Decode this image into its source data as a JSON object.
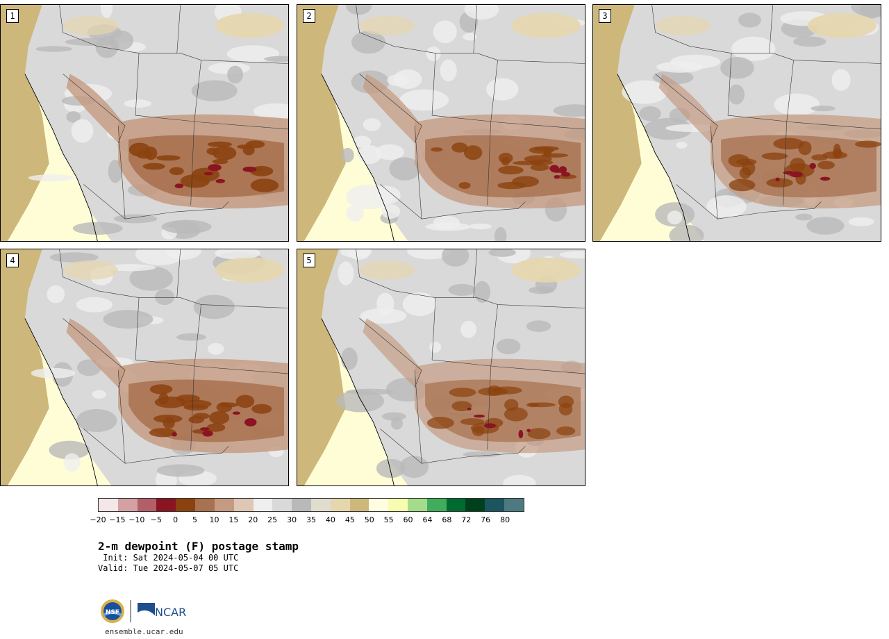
{
  "panels": [
    {
      "label": "1",
      "intensity": 1.0
    },
    {
      "label": "2",
      "intensity": 0.9
    },
    {
      "label": "3",
      "intensity": 0.85
    },
    {
      "label": "4",
      "intensity": 0.95
    },
    {
      "label": "5",
      "intensity": 0.8
    }
  ],
  "legend": {
    "ticks": [
      "−20",
      "−15",
      "−10",
      "−5",
      "0",
      "5",
      "10",
      "15",
      "20",
      "25",
      "30",
      "35",
      "40",
      "45",
      "50",
      "55",
      "60",
      "64",
      "68",
      "72",
      "76",
      "80"
    ],
    "colors": [
      "#f5e6e8",
      "#d4a0a3",
      "#b25f68",
      "#8a1422",
      "#8b420f",
      "#a8714f",
      "#c49a80",
      "#e0c6b5",
      "#efefef",
      "#d9d9d9",
      "#b9b9b9",
      "#e0ddcf",
      "#e6d6ad",
      "#cdb77a",
      "#fffde0",
      "#f8fcb0",
      "#a4dc8c",
      "#40ad5c",
      "#006b31",
      "#00401d",
      "#1a5560",
      "#4d7a80"
    ]
  },
  "title": "2-m dewpoint (F) postage stamp",
  "init": " Init: Sat 2024-05-04 00 UTC",
  "valid": "Valid: Tue 2024-05-07 05 UTC",
  "logos": {
    "nsf": "NSF",
    "ncar": "NCAR"
  },
  "site": "ensemble.ucar.edu"
}
